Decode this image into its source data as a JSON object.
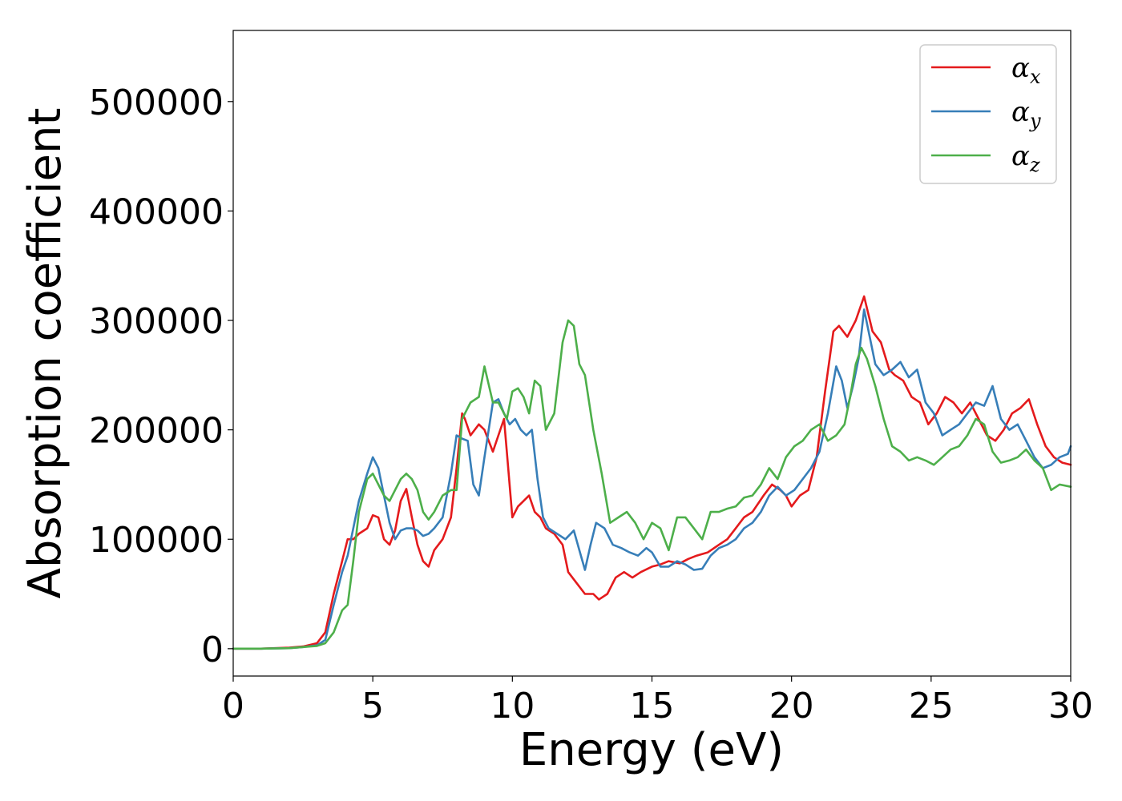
{
  "chart_data": {
    "type": "line",
    "xlabel": "Energy (eV)",
    "ylabel": "Absorption coefficient",
    "xlim": [
      0,
      30
    ],
    "ylim": [
      -25000,
      565000
    ],
    "xticks": [
      "0",
      "5",
      "10",
      "15",
      "20",
      "25",
      "30"
    ],
    "yticks": [
      "0",
      "100000",
      "200000",
      "300000",
      "400000",
      "500000"
    ],
    "grid": false,
    "legend_position": "top-right",
    "series": [
      {
        "name": "α_x",
        "label_base": "α",
        "label_sub": "x",
        "color": "#e41a1c",
        "x": [
          0,
          1,
          2,
          2.5,
          3,
          3.3,
          3.6,
          3.9,
          4.1,
          4.3,
          4.5,
          4.8,
          5.0,
          5.2,
          5.4,
          5.6,
          5.8,
          6.0,
          6.2,
          6.4,
          6.6,
          6.8,
          7.0,
          7.2,
          7.5,
          7.8,
          8.0,
          8.2,
          8.3,
          8.5,
          8.8,
          9.0,
          9.3,
          9.5,
          9.7,
          9.8,
          10.0,
          10.2,
          10.4,
          10.6,
          10.8,
          11.0,
          11.2,
          11.5,
          11.8,
          12.0,
          12.3,
          12.6,
          12.9,
          13.1,
          13.4,
          13.7,
          14.0,
          14.3,
          14.6,
          15.0,
          15.3,
          15.6,
          16.0,
          16.3,
          16.6,
          17.0,
          17.4,
          17.7,
          18.0,
          18.3,
          18.6,
          19.0,
          19.3,
          19.6,
          19.8,
          20.0,
          20.3,
          20.6,
          20.9,
          21.2,
          21.5,
          21.7,
          22.0,
          22.3,
          22.6,
          22.9,
          23.2,
          23.5,
          23.7,
          24.0,
          24.3,
          24.6,
          24.9,
          25.2,
          25.5,
          25.8,
          26.1,
          26.4,
          26.7,
          27.0,
          27.3,
          27.6,
          27.9,
          28.2,
          28.5,
          28.8,
          29.1,
          29.4,
          29.7,
          30.0
        ],
        "y": [
          0,
          0,
          1000,
          2000,
          5000,
          15000,
          50000,
          80000,
          100000,
          100000,
          105000,
          110000,
          122000,
          120000,
          100000,
          95000,
          108000,
          135000,
          146000,
          120000,
          95000,
          80000,
          75000,
          90000,
          100000,
          120000,
          165000,
          215000,
          210000,
          195000,
          205000,
          200000,
          180000,
          195000,
          210000,
          180000,
          120000,
          130000,
          135000,
          140000,
          125000,
          120000,
          110000,
          105000,
          95000,
          70000,
          60000,
          50000,
          50000,
          45000,
          50000,
          65000,
          70000,
          65000,
          70000,
          75000,
          77000,
          80000,
          78000,
          82000,
          85000,
          88000,
          95000,
          100000,
          110000,
          120000,
          125000,
          140000,
          150000,
          145000,
          140000,
          130000,
          140000,
          145000,
          175000,
          235000,
          290000,
          295000,
          285000,
          300000,
          322000,
          290000,
          280000,
          255000,
          250000,
          245000,
          230000,
          225000,
          205000,
          215000,
          230000,
          225000,
          215000,
          225000,
          210000,
          195000,
          190000,
          200000,
          215000,
          220000,
          228000,
          205000,
          185000,
          175000,
          170000,
          168000
        ]
      },
      {
        "name": "α_y",
        "label_base": "α",
        "label_sub": "y",
        "color": "#377eb8",
        "x": [
          0,
          1,
          2,
          2.5,
          3,
          3.3,
          3.6,
          3.9,
          4.1,
          4.3,
          4.5,
          4.8,
          5.0,
          5.2,
          5.4,
          5.6,
          5.8,
          6.0,
          6.2,
          6.4,
          6.6,
          6.8,
          7.0,
          7.2,
          7.5,
          7.8,
          8.0,
          8.2,
          8.4,
          8.6,
          8.8,
          9.0,
          9.3,
          9.5,
          9.7,
          9.9,
          10.1,
          10.3,
          10.5,
          10.7,
          10.9,
          11.1,
          11.3,
          11.6,
          11.9,
          12.2,
          12.4,
          12.6,
          12.8,
          13.0,
          13.3,
          13.6,
          13.9,
          14.2,
          14.5,
          14.8,
          15.0,
          15.3,
          15.6,
          15.9,
          16.2,
          16.5,
          16.8,
          17.1,
          17.4,
          17.7,
          18.0,
          18.3,
          18.6,
          18.9,
          19.2,
          19.5,
          19.8,
          20.1,
          20.4,
          20.7,
          21.0,
          21.3,
          21.6,
          21.8,
          22.0,
          22.2,
          22.4,
          22.6,
          22.8,
          23.0,
          23.3,
          23.6,
          23.9,
          24.2,
          24.5,
          24.8,
          25.1,
          25.4,
          25.7,
          26.0,
          26.3,
          26.6,
          26.9,
          27.2,
          27.5,
          27.8,
          28.1,
          28.4,
          28.7,
          29.0,
          29.3,
          29.6,
          29.9,
          30.0
        ],
        "y": [
          0,
          0,
          500,
          1500,
          3000,
          8000,
          40000,
          70000,
          85000,
          110000,
          135000,
          160000,
          175000,
          165000,
          140000,
          115000,
          100000,
          108000,
          110000,
          110000,
          108000,
          103000,
          105000,
          110000,
          120000,
          160000,
          195000,
          192000,
          190000,
          150000,
          140000,
          175000,
          225000,
          228000,
          215000,
          205000,
          210000,
          200000,
          195000,
          200000,
          155000,
          120000,
          110000,
          105000,
          100000,
          108000,
          90000,
          72000,
          95000,
          115000,
          110000,
          95000,
          92000,
          88000,
          85000,
          92000,
          88000,
          75000,
          75000,
          80000,
          77000,
          72000,
          73000,
          85000,
          92000,
          95000,
          100000,
          110000,
          115000,
          125000,
          140000,
          148000,
          140000,
          145000,
          155000,
          165000,
          180000,
          215000,
          258000,
          245000,
          220000,
          240000,
          265000,
          310000,
          285000,
          260000,
          250000,
          255000,
          262000,
          248000,
          255000,
          225000,
          215000,
          195000,
          200000,
          205000,
          215000,
          225000,
          222000,
          240000,
          210000,
          200000,
          205000,
          190000,
          175000,
          165000,
          168000,
          175000,
          178000,
          185000
        ]
      },
      {
        "name": "α_z",
        "label_base": "α",
        "label_sub": "z",
        "color": "#4daf4a",
        "x": [
          0,
          1,
          2,
          2.5,
          3,
          3.3,
          3.6,
          3.9,
          4.1,
          4.3,
          4.5,
          4.8,
          5.0,
          5.2,
          5.4,
          5.6,
          5.8,
          6.0,
          6.2,
          6.4,
          6.6,
          6.8,
          7.0,
          7.2,
          7.5,
          7.8,
          8.0,
          8.2,
          8.5,
          8.8,
          9.0,
          9.3,
          9.5,
          9.8,
          10.0,
          10.2,
          10.4,
          10.6,
          10.8,
          11.0,
          11.2,
          11.5,
          11.8,
          12.0,
          12.2,
          12.4,
          12.6,
          12.9,
          13.2,
          13.5,
          13.8,
          14.1,
          14.4,
          14.7,
          15.0,
          15.3,
          15.6,
          15.9,
          16.2,
          16.5,
          16.8,
          17.1,
          17.4,
          17.7,
          18.0,
          18.3,
          18.6,
          18.9,
          19.2,
          19.5,
          19.8,
          20.1,
          20.4,
          20.7,
          21.0,
          21.3,
          21.6,
          21.9,
          22.1,
          22.3,
          22.5,
          22.7,
          23.0,
          23.3,
          23.6,
          23.9,
          24.2,
          24.5,
          24.8,
          25.1,
          25.4,
          25.7,
          26.0,
          26.3,
          26.6,
          26.9,
          27.2,
          27.5,
          27.8,
          28.1,
          28.4,
          28.7,
          29.0,
          29.3,
          29.6,
          30.0
        ],
        "y": [
          0,
          0,
          500,
          1500,
          2500,
          5000,
          15000,
          35000,
          40000,
          80000,
          125000,
          155000,
          160000,
          150000,
          140000,
          135000,
          145000,
          155000,
          160000,
          155000,
          145000,
          125000,
          118000,
          125000,
          140000,
          145000,
          145000,
          210000,
          225000,
          230000,
          258000,
          225000,
          225000,
          210000,
          235000,
          238000,
          230000,
          215000,
          245000,
          240000,
          200000,
          215000,
          280000,
          300000,
          295000,
          260000,
          250000,
          200000,
          160000,
          115000,
          120000,
          125000,
          115000,
          100000,
          115000,
          110000,
          90000,
          120000,
          120000,
          110000,
          100000,
          125000,
          125000,
          128000,
          130000,
          138000,
          140000,
          150000,
          165000,
          155000,
          175000,
          185000,
          190000,
          200000,
          205000,
          190000,
          195000,
          205000,
          230000,
          260000,
          275000,
          265000,
          240000,
          210000,
          185000,
          180000,
          172000,
          175000,
          172000,
          168000,
          175000,
          182000,
          185000,
          195000,
          210000,
          205000,
          180000,
          170000,
          172000,
          175000,
          182000,
          172000,
          165000,
          145000,
          150000,
          148000
        ]
      }
    ]
  }
}
